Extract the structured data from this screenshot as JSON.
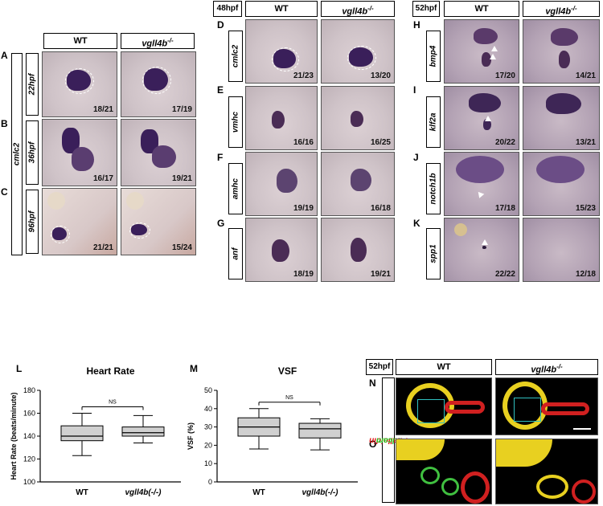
{
  "panel_letters": {
    "A": "A",
    "B": "B",
    "C": "C",
    "D": "D",
    "E": "E",
    "F": "F",
    "G": "G",
    "H": "H",
    "I": "I",
    "J": "J",
    "K": "K",
    "L": "L",
    "M": "M",
    "N": "N",
    "O": "O"
  },
  "left_block": {
    "wt": "WT",
    "mut": "vgll4b",
    "mut_sup": "-/-",
    "gene": "cmlc2",
    "rows": [
      {
        "stage": "22hpf",
        "wt": "18/21",
        "mut": "17/19"
      },
      {
        "stage": "36hpf",
        "wt": "16/17",
        "mut": "19/21"
      },
      {
        "stage": "96hpf",
        "wt": "21/21",
        "mut": "15/24"
      }
    ]
  },
  "mid_block": {
    "stage": "48hpf",
    "wt": "WT",
    "mut": "vgll4b",
    "mut_sup": "-/-",
    "rows": [
      {
        "gene": "cmlc2",
        "wt": "21/23",
        "mut": "13/20"
      },
      {
        "gene": "vmhc",
        "wt": "16/16",
        "mut": "16/25"
      },
      {
        "gene": "amhc",
        "wt": "19/19",
        "mut": "16/18"
      },
      {
        "gene": "anf",
        "wt": "18/19",
        "mut": "19/21"
      }
    ]
  },
  "right_block": {
    "stage": "52hpf",
    "wt": "WT",
    "mut": "vgll4b",
    "mut_sup": "-/-",
    "rows": [
      {
        "gene": "bmp4",
        "wt": "17/20",
        "mut": "14/21"
      },
      {
        "gene": "klf2a",
        "wt": "20/22",
        "mut": "13/21"
      },
      {
        "gene": "notch1b",
        "wt": "17/18",
        "mut": "15/23"
      },
      {
        "gene": "spp1",
        "wt": "22/22",
        "mut": "12/18"
      }
    ]
  },
  "confocal": {
    "stage": "52hpf",
    "wt": "WT",
    "mut": "vgll4b",
    "mut_sup": "-/-",
    "stain1": "Phalloidin",
    "stain2": "Alcam",
    "colors": {
      "phalloidin": "#e01010",
      "alcam": "#22cc22",
      "overlap": "#f0e020"
    }
  },
  "chart_data": [
    {
      "type": "box",
      "title": "Heart Rate",
      "ylabel": "Heart Rate (beats/minute)",
      "xlabel": "",
      "categories": [
        "WT",
        "vgll4b(-/-)"
      ],
      "ylim": [
        100,
        180
      ],
      "yticks": [
        100,
        120,
        140,
        160,
        180
      ],
      "boxes": [
        {
          "min": 123,
          "q1": 136,
          "median": 140,
          "q3": 149,
          "max": 160
        },
        {
          "min": 134,
          "q1": 140,
          "median": 143,
          "q3": 148,
          "max": 158
        }
      ],
      "annotation": "NS",
      "box_color": "#d0d0d0"
    },
    {
      "type": "box",
      "title": "VSF",
      "ylabel": "VSF (%)",
      "xlabel": "",
      "categories": [
        "WT",
        "vgll4b(-/-)"
      ],
      "ylim": [
        0,
        50
      ],
      "yticks": [
        0,
        10,
        20,
        30,
        40,
        50
      ],
      "boxes": [
        {
          "min": 18,
          "q1": 25,
          "median": 30,
          "q3": 35,
          "max": 40
        },
        {
          "min": 17.5,
          "q1": 24,
          "median": 29,
          "q3": 32,
          "max": 34.5
        }
      ],
      "annotation": "NS",
      "box_color": "#d0d0d0"
    }
  ]
}
